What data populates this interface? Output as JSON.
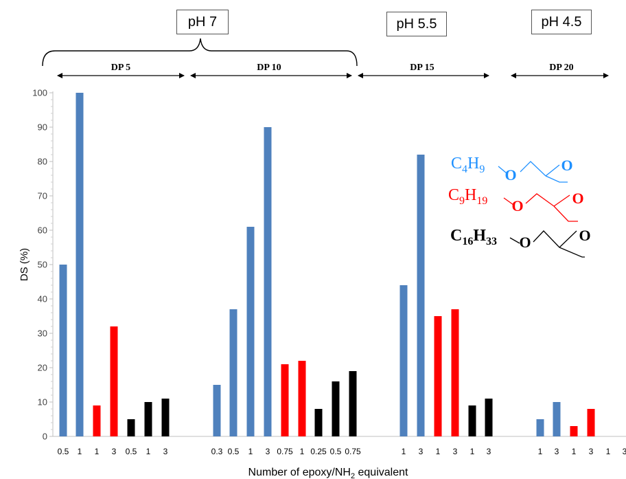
{
  "chart_data": {
    "type": "bar",
    "title": "",
    "xlabel": "Number of epoxy/NH",
    "xlabel_sub": "2",
    "xlabel_tail": " equivalent",
    "ylabel": "DS (%)",
    "ylim": [
      0,
      100
    ],
    "yticks": [
      0,
      10,
      20,
      30,
      40,
      50,
      60,
      70,
      80,
      90,
      100
    ],
    "grid": false,
    "colors": {
      "C4H9": "#4f81bd",
      "C9H19": "#ff0000",
      "C16H33": "#000000"
    },
    "bars": [
      {
        "label": "0.5",
        "value": 50,
        "series": "C4H9",
        "group": "DP 5"
      },
      {
        "label": "1",
        "value": 100,
        "series": "C4H9",
        "group": "DP 5"
      },
      {
        "label": "1",
        "value": 9,
        "series": "C9H19",
        "group": "DP 5"
      },
      {
        "label": "3",
        "value": 32,
        "series": "C9H19",
        "group": "DP 5"
      },
      {
        "label": "0.5",
        "value": 5,
        "series": "C16H33",
        "group": "DP 5"
      },
      {
        "label": "1",
        "value": 10,
        "series": "C16H33",
        "group": "DP 5"
      },
      {
        "label": "3",
        "value": 11,
        "series": "C16H33",
        "group": "DP 5"
      },
      {
        "label": "0.3",
        "value": 15,
        "series": "C4H9",
        "group": "DP 10"
      },
      {
        "label": "0.5",
        "value": 37,
        "series": "C4H9",
        "group": "DP 10"
      },
      {
        "label": "1",
        "value": 61,
        "series": "C4H9",
        "group": "DP 10"
      },
      {
        "label": "3",
        "value": 90,
        "series": "C4H9",
        "group": "DP 10"
      },
      {
        "label": "0.75",
        "value": 21,
        "series": "C9H19",
        "group": "DP 10"
      },
      {
        "label": "1",
        "value": 22,
        "series": "C9H19",
        "group": "DP 10"
      },
      {
        "label": "0.25",
        "value": 8,
        "series": "C16H33",
        "group": "DP 10"
      },
      {
        "label": "0.5",
        "value": 16,
        "series": "C16H33",
        "group": "DP 10"
      },
      {
        "label": "0.75",
        "value": 19,
        "series": "C16H33",
        "group": "DP 10"
      },
      {
        "label": "1",
        "value": 44,
        "series": "C4H9",
        "group": "DP 15"
      },
      {
        "label": "3",
        "value": 82,
        "series": "C4H9",
        "group": "DP 15"
      },
      {
        "label": "1",
        "value": 35,
        "series": "C9H19",
        "group": "DP 15"
      },
      {
        "label": "3",
        "value": 37,
        "series": "C9H19",
        "group": "DP 15"
      },
      {
        "label": "1",
        "value": 9,
        "series": "C16H33",
        "group": "DP 15"
      },
      {
        "label": "3",
        "value": 11,
        "series": "C16H33",
        "group": "DP 15"
      },
      {
        "label": "1",
        "value": 5,
        "series": "C4H9",
        "group": "DP 20"
      },
      {
        "label": "3",
        "value": 10,
        "series": "C4H9",
        "group": "DP 20"
      },
      {
        "label": "1",
        "value": 3,
        "series": "C9H19",
        "group": "DP 20"
      },
      {
        "label": "3",
        "value": 8,
        "series": "C9H19",
        "group": "DP 20"
      },
      {
        "label": "1",
        "value": null,
        "series": "C16H33",
        "group": "DP 20"
      },
      {
        "label": "3",
        "value": null,
        "series": "C16H33",
        "group": "DP 20"
      }
    ],
    "group_labels": [
      "DP 5",
      "DP 10",
      "DP 15",
      "DP 20"
    ],
    "ph_labels": [
      "pH 7",
      "pH 5.5",
      "pH 4.5"
    ],
    "legend": [
      {
        "main": "C",
        "sub1": "4",
        "mid": "H",
        "sub2": "9",
        "oxygen": "O",
        "ring": "O",
        "color": "#1e90ff"
      },
      {
        "main": "C",
        "sub1": "9",
        "mid": "H",
        "sub2": "19",
        "oxygen": "O",
        "ring": "O",
        "color": "#ff0000"
      },
      {
        "main": "C",
        "sub1": "16",
        "mid": "H",
        "sub2": "33",
        "oxygen": "O",
        "ring": "O",
        "color": "#000000"
      }
    ]
  }
}
